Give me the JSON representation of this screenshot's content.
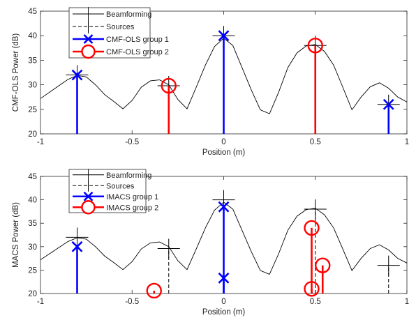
{
  "chart_data": [
    {
      "type": "line",
      "xlabel": "Position (m)",
      "ylabel": "CMF-OLS Power (dB)",
      "xlim": [
        -1,
        1
      ],
      "ylim": [
        20,
        45
      ],
      "xticks": [
        "-1",
        "-0.5",
        "0",
        "0.5",
        "1"
      ],
      "yticks": [
        "20",
        "25",
        "30",
        "35",
        "40",
        "45"
      ],
      "legend_position": "top-left",
      "beamforming": {
        "name": "Beamforming",
        "color": "#000000",
        "x": [
          -1.0,
          -0.9,
          -0.85,
          -0.8,
          -0.75,
          -0.7,
          -0.65,
          -0.6,
          -0.55,
          -0.5,
          -0.45,
          -0.4,
          -0.35,
          -0.3,
          -0.25,
          -0.2,
          -0.15,
          -0.1,
          -0.05,
          0.0,
          0.05,
          0.1,
          0.15,
          0.2,
          0.25,
          0.3,
          0.35,
          0.4,
          0.45,
          0.5,
          0.55,
          0.6,
          0.65,
          0.7,
          0.75,
          0.8,
          0.85,
          0.9,
          0.95,
          1.0
        ],
        "y": [
          27.2,
          29.8,
          31.1,
          31.9,
          31.6,
          30.0,
          28.0,
          26.6,
          25.1,
          26.8,
          29.5,
          30.8,
          31.0,
          30.0,
          27.0,
          25.1,
          29.5,
          34.0,
          37.8,
          39.5,
          38.0,
          33.5,
          29.0,
          24.9,
          24.1,
          28.5,
          33.5,
          36.5,
          37.9,
          38.2,
          36.8,
          34.0,
          29.5,
          24.9,
          27.5,
          29.6,
          30.4,
          29.3,
          27.5,
          26.5
        ]
      },
      "sources": {
        "name": "Sources",
        "color": "#000000",
        "points": [
          {
            "x": -0.8,
            "y": 32.0
          },
          {
            "x": -0.3,
            "y": 29.8
          },
          {
            "x": 0.0,
            "y": 40.0
          },
          {
            "x": 0.5,
            "y": 38.0
          },
          {
            "x": 0.9,
            "y": 26.0
          }
        ]
      },
      "group1": {
        "name": "CMF-OLS group 1",
        "color": "#0000ff",
        "marker": "x",
        "points": [
          {
            "x": -0.8,
            "y": 32.0
          },
          {
            "x": 0.0,
            "y": 40.0
          },
          {
            "x": 0.9,
            "y": 26.0
          }
        ]
      },
      "group2": {
        "name": "CMF-OLS group 2",
        "color": "#ff0000",
        "marker": "o",
        "points": [
          {
            "x": -0.3,
            "y": 29.8
          },
          {
            "x": 0.5,
            "y": 38.0
          }
        ]
      }
    },
    {
      "type": "line",
      "xlabel": "Position (m)",
      "ylabel": "MACS Power (dB)",
      "xlim": [
        -1,
        1
      ],
      "ylim": [
        20,
        45
      ],
      "xticks": [
        "-1",
        "-0.5",
        "0",
        "0.5",
        "1"
      ],
      "yticks": [
        "20",
        "25",
        "30",
        "35",
        "40",
        "45"
      ],
      "legend_position": "top-left",
      "beamforming": {
        "name": "Beamforming",
        "color": "#000000",
        "x": [
          -1.0,
          -0.9,
          -0.85,
          -0.8,
          -0.75,
          -0.7,
          -0.65,
          -0.6,
          -0.55,
          -0.5,
          -0.45,
          -0.4,
          -0.35,
          -0.3,
          -0.25,
          -0.2,
          -0.15,
          -0.1,
          -0.05,
          0.0,
          0.05,
          0.1,
          0.15,
          0.2,
          0.25,
          0.3,
          0.35,
          0.4,
          0.45,
          0.5,
          0.55,
          0.6,
          0.65,
          0.7,
          0.75,
          0.8,
          0.85,
          0.9,
          0.95,
          1.0
        ],
        "y": [
          27.2,
          29.8,
          31.1,
          31.9,
          31.6,
          30.0,
          28.0,
          26.6,
          25.1,
          26.8,
          29.5,
          30.8,
          31.0,
          30.0,
          27.0,
          25.1,
          29.5,
          34.0,
          37.8,
          39.5,
          38.0,
          33.5,
          29.0,
          24.9,
          24.1,
          28.5,
          33.5,
          36.5,
          37.9,
          38.2,
          36.8,
          34.0,
          29.5,
          24.9,
          27.5,
          29.6,
          30.4,
          29.3,
          27.5,
          26.5
        ]
      },
      "sources": {
        "name": "Sources",
        "color": "#000000",
        "points": [
          {
            "x": -0.8,
            "y": 32.0
          },
          {
            "x": -0.3,
            "y": 29.6
          },
          {
            "x": 0.0,
            "y": 40.0
          },
          {
            "x": 0.5,
            "y": 38.0
          },
          {
            "x": 0.9,
            "y": 26.0
          }
        ]
      },
      "group1": {
        "name": "IMACS group 1",
        "color": "#0000ff",
        "marker": "x",
        "points": [
          {
            "x": -0.8,
            "y": 30.0
          },
          {
            "x": 0.0,
            "y": 38.5
          },
          {
            "x": 0.0,
            "y": 23.3
          }
        ]
      },
      "group2": {
        "name": "IMACS group 2",
        "color": "#ff0000",
        "marker": "o",
        "points": [
          {
            "x": -0.38,
            "y": 20.6
          },
          {
            "x": 0.48,
            "y": 34.0
          },
          {
            "x": 0.48,
            "y": 21.0
          },
          {
            "x": 0.54,
            "y": 26.0
          }
        ]
      }
    }
  ]
}
